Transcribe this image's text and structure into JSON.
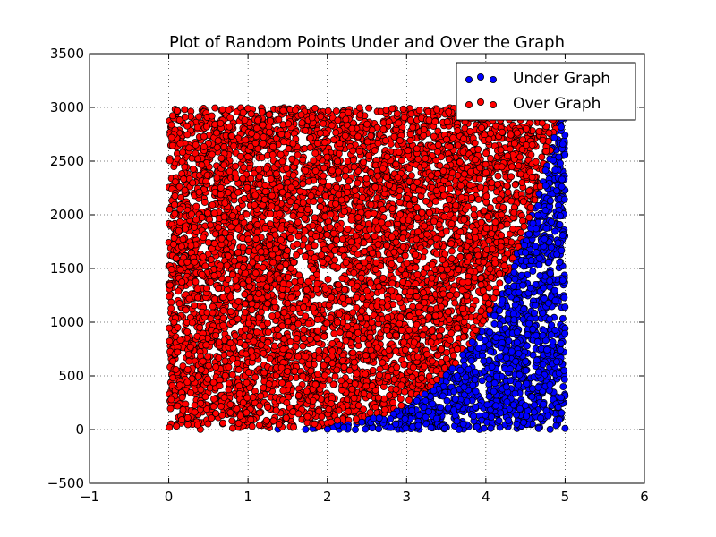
{
  "chart_data": {
    "type": "scatter",
    "title": "Plot of Random Points Under and Over the Graph",
    "xlabel": "",
    "ylabel": "",
    "xlim": [
      -1,
      6
    ],
    "ylim": [
      -500,
      3500
    ],
    "x_ticks": [
      -1,
      0,
      1,
      2,
      3,
      4,
      5,
      6
    ],
    "y_ticks": [
      -500,
      0,
      500,
      1000,
      1500,
      2000,
      2500,
      3000,
      3500
    ],
    "x_tick_labels": [
      "−1",
      "0",
      "1",
      "2",
      "3",
      "4",
      "5",
      "6"
    ],
    "y_tick_labels": [
      "−500",
      "0",
      "500",
      "1000",
      "1500",
      "2000",
      "2500",
      "3000",
      "3500"
    ],
    "grid": true,
    "legend_position": "top-right",
    "sampling": {
      "x_range": [
        0,
        5
      ],
      "y_range": [
        0,
        3000
      ],
      "boundary_curve": "y = x^5"
    },
    "series": [
      {
        "name": "Under Graph",
        "color": "#0000ff",
        "marker_edge": "#000000"
      },
      {
        "name": "Over Graph",
        "color": "#ff0000",
        "marker_edge": "#000000"
      }
    ]
  }
}
